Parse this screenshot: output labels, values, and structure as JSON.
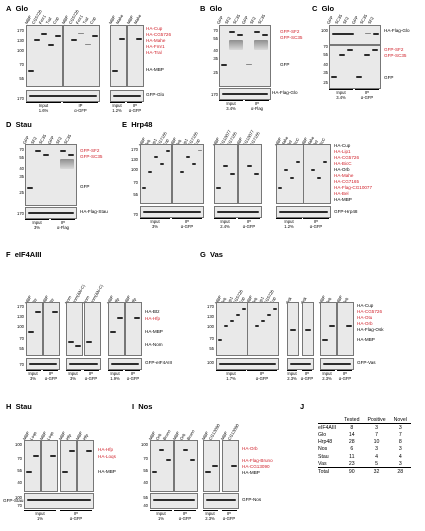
{
  "panels": {
    "A": {
      "letter": "A",
      "title": "Glo",
      "lanes": [
        "MBP",
        "CG5726",
        "Fmr1",
        "Tral",
        "Cup",
        "MBP",
        "CG5726",
        "Fmr1",
        "Tral",
        "Cup",
        "MBP",
        "Mahe",
        "MBP",
        "Mahe"
      ],
      "mw": [
        "170",
        "130",
        "100",
        "70",
        "55",
        "170"
      ],
      "right": [
        "HA-Cup",
        "HA-CG5726",
        "HA-Mahe",
        "HA-Fmr1",
        "HA-Tral",
        "HA-MBP",
        "GFP-Glo"
      ],
      "under": [
        "Input\n1.6%",
        "IP\nα-GFP",
        "Input\n1.2%",
        "IP\nα-GFP"
      ]
    },
    "B": {
      "letter": "B",
      "title": "Glo",
      "lanes": [
        "GFP",
        "SF2",
        "SC35",
        "GFP",
        "SF2",
        "SC35"
      ],
      "mw": [
        "70",
        "55",
        "40",
        "35",
        "25",
        "170"
      ],
      "right": [
        "GFP-SF2",
        "GFP-SC35",
        "GFP",
        "HA-Flag-Glo"
      ],
      "under": [
        "Input\n3.4%",
        "IP\nα-Flag"
      ]
    },
    "C": {
      "letter": "C",
      "title": "Glo",
      "lanes": [
        "GFP",
        "SC35",
        "SF2",
        "GFP",
        "SC35",
        "SF2"
      ],
      "mw": [
        "100",
        "70",
        "55",
        "40",
        "35",
        "25"
      ],
      "right": [
        "HA-Flag-Glo",
        "GFP-SF2",
        "GFP-SC35",
        "GFP"
      ],
      "under": [
        "Input\n3.4%",
        "IP\nα-GFP"
      ]
    },
    "D": {
      "letter": "D",
      "title": "Stau",
      "lanes": [
        "GFP",
        "SF2",
        "SC35",
        "GFP",
        "SF2",
        "SC35"
      ],
      "mw": [
        "70",
        "55",
        "40",
        "35",
        "25",
        "170"
      ],
      "right": [
        "GFP-SF2",
        "GFP-SC35",
        "GFP",
        "HA-Flag-Stau"
      ],
      "under": [
        "Input\n3%",
        "IP\nα-Flag"
      ]
    },
    "E": {
      "letter": "E",
      "title": "Hrp48",
      "lanes": [
        "MBP",
        "Orb",
        "Lip1",
        "CG7165",
        "Cup",
        "MBP",
        "Orb",
        "Lip1",
        "CG7165",
        "Cup",
        "MBP",
        "CG10077",
        "CG7165",
        "MBP",
        "CG10077",
        "CG7165",
        "MBP",
        "Mahe",
        "Bel",
        "BicC",
        "MBP",
        "Mahe",
        "Bel",
        "BicC"
      ],
      "mw": [
        "170",
        "130",
        "100",
        "70",
        "55",
        "70"
      ],
      "right": [
        "HA-Cup",
        "HA-Lip1",
        "HA-CG5726",
        "HA-BicC",
        "HA-Orb",
        "HA-Mahe",
        "HA-CG7165",
        "HA-Flag-CG10077",
        "HA-Bel",
        "HA-MBP",
        "GFP-Hrp48"
      ],
      "red_flags": [
        false,
        true,
        true,
        true,
        false,
        true,
        true,
        true,
        true,
        false,
        false
      ],
      "under": [
        "Input\n3%",
        "IP\nα-GFP",
        "Input\n2.4%",
        "IP\nα-GFP",
        "Input\n1.2%",
        "IP\nα-GFP"
      ]
    },
    "F": {
      "letter": "F",
      "title": "eIF4AIII",
      "lanes": [
        "MBP",
        "Btz",
        "MBP",
        "Btz",
        "Nom",
        "Nom(ΔN-C)",
        "Nom",
        "Nom(ΔN-C)",
        "MBP",
        "Hfp",
        "MBP",
        "Hfp"
      ],
      "mw": [
        "170",
        "130",
        "100",
        "70",
        "55",
        "70"
      ],
      "right": [
        "HA-Btz",
        "HA-Hfp",
        "HA-MBP",
        "HA-Nom",
        "GFP-eIF4AIII"
      ],
      "red_flags": [
        false,
        true,
        false,
        false,
        false
      ],
      "under": [
        "Input\n3%",
        "IP\nα-GFP",
        "Input\n3%",
        "IP\nα-GFP",
        "Input\n1.9%",
        "IP\nα-GFP"
      ]
    },
    "G": {
      "letter": "G",
      "title": "Vas",
      "lanes": [
        "MBP",
        "Orb",
        "Lip1",
        "CG5726",
        "Cup",
        "MBP",
        "Orb",
        "Lip1",
        "CG5726",
        "Cup",
        "Osk",
        "Osk",
        "MBP",
        "Orb",
        "MBP",
        "Orb"
      ],
      "mw": [
        "170",
        "130",
        "100",
        "70",
        "55",
        "100"
      ],
      "right": [
        "HA-Cup",
        "HA-CG5726",
        "HA-Otu",
        "HA-Orb",
        "HA-Flag-Osk",
        "HA-MBP",
        "GFP-Vas"
      ],
      "red_flags": [
        false,
        true,
        true,
        true,
        false,
        false,
        false
      ],
      "under": [
        "Input\n1.7%",
        "IP\nα-GFP",
        "Input\n2.3%",
        "IP\nα-GFP",
        "Input\n2.3%",
        "IP\nα-GFP"
      ]
    },
    "H": {
      "letter": "H",
      "title": "Stau",
      "lanes": [
        "MBP",
        "Loqs",
        "MBP",
        "Loqs",
        "MBP",
        "Hfp",
        "MBP",
        "Hfp"
      ],
      "mw": [
        "100",
        "70",
        "55",
        "40",
        "100",
        "70"
      ],
      "right": [
        "HA-Hfp",
        "HA-Loqs",
        "HA-MBP",
        "GFP-Stau"
      ],
      "red_flags": [
        true,
        true,
        false,
        false
      ],
      "under": [
        "Input\n1%",
        "IP\nα-GFP"
      ]
    },
    "I": {
      "letter": "I",
      "title": "Nos",
      "lanes": [
        "MBP",
        "Orb",
        "Bruno",
        "MBP",
        "Orb",
        "Bruno",
        "MBP",
        "CG13090",
        "MBP",
        "CG13090"
      ],
      "mw": [
        "100",
        "70",
        "55",
        "40",
        "55",
        "40"
      ],
      "right": [
        "HA-Orb",
        "HA-Flag-Bruno",
        "HA-CG13090",
        "HA-MBP",
        "GFP-Nos"
      ],
      "red_flags": [
        true,
        true,
        true,
        false,
        false
      ],
      "under": [
        "Input\n1%",
        "IP\nα-GFP",
        "Input\n2.3%",
        "IP\nα-GFP"
      ]
    },
    "J": {
      "letter": "J"
    }
  },
  "summary": {
    "headers": [
      "",
      "Tested",
      "Positive",
      "Novel"
    ],
    "rows": [
      [
        "eIF4AIII",
        "8",
        "3",
        "3"
      ],
      [
        "Glo",
        "14",
        "7",
        "7"
      ],
      [
        "Hrp48",
        "28",
        "10",
        "8"
      ],
      [
        "Nos",
        "6",
        "3",
        "3"
      ],
      [
        "Stau",
        "11",
        "4",
        "4"
      ],
      [
        "Vas",
        "23",
        "5",
        "3"
      ]
    ],
    "total": [
      "Total",
      "90",
      "32",
      "28"
    ]
  },
  "colors": {
    "highlight": "#d0202a",
    "blot_bg": "#e9e9e9",
    "band": "#2c2c2c"
  }
}
